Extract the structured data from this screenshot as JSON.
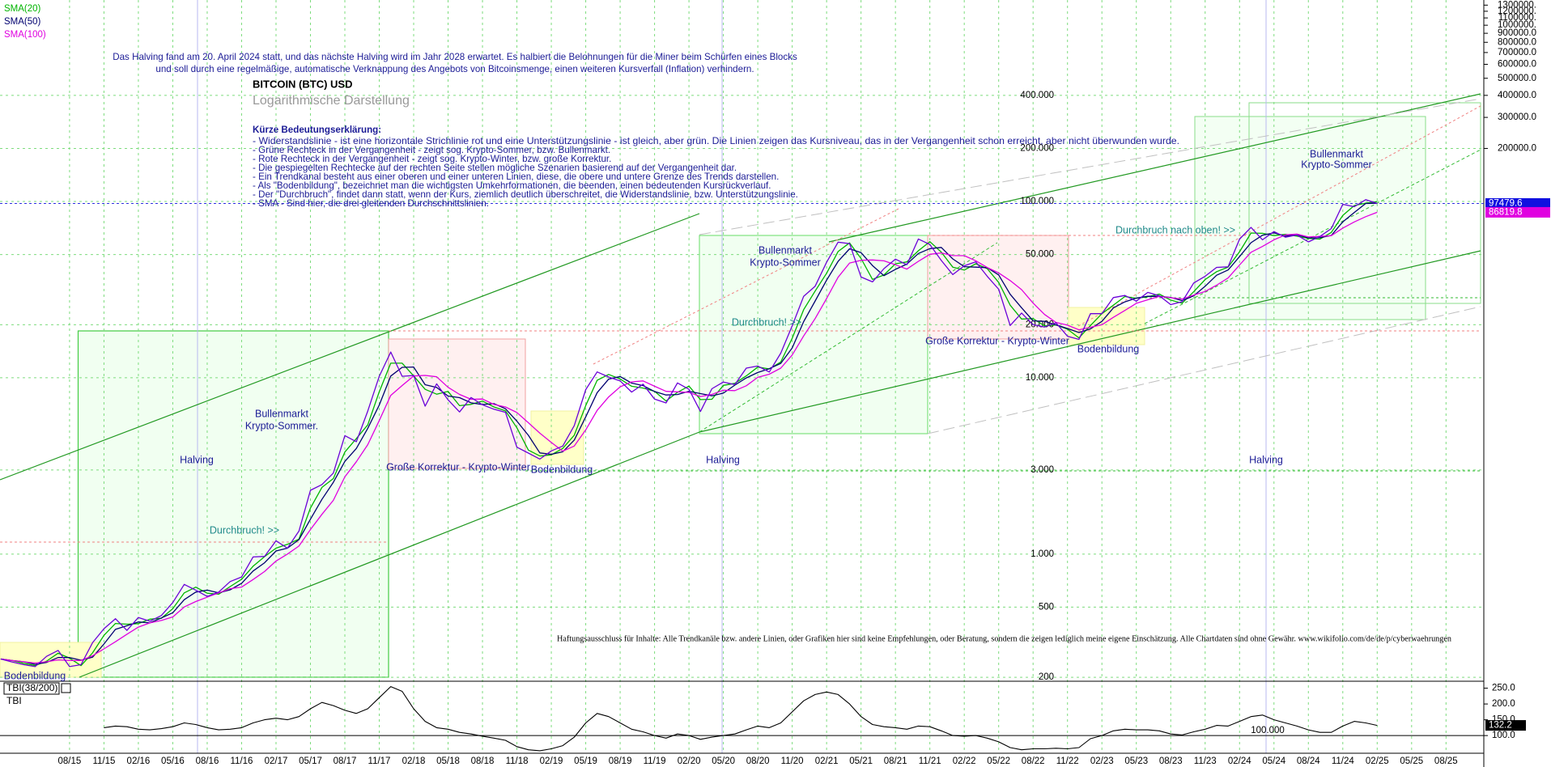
{
  "chart_data": [
    {
      "type": "line",
      "title": "BITCOIN (BTC) USD",
      "subtitle": "Logarithmische Darstellung",
      "categories": [
        null,
        null,
        null,
        null,
        null,
        null,
        "08/15",
        null,
        null,
        "11/15",
        null,
        null,
        "02/16",
        null,
        null,
        "05/16",
        null,
        null,
        "08/16",
        null,
        null,
        "11/16",
        null,
        null,
        "02/17",
        null,
        null,
        "05/17",
        null,
        null,
        "08/17",
        null,
        null,
        "11/17",
        null,
        null,
        "02/18",
        null,
        null,
        "05/18",
        null,
        null,
        "08/18",
        null,
        null,
        "11/18",
        null,
        null,
        "02/19",
        null,
        null,
        "05/19",
        null,
        null,
        "08/19",
        null,
        null,
        "11/19",
        null,
        null,
        "02/20",
        null,
        null,
        "05/20",
        null,
        null,
        "08/20",
        null,
        null,
        "11/20",
        null,
        null,
        "02/21",
        null,
        null,
        "05/21",
        null,
        null,
        "08/21",
        null,
        null,
        "11/21",
        null,
        null,
        "02/22",
        null,
        null,
        "05/22",
        null,
        null,
        "08/22",
        null,
        null,
        "11/22",
        null,
        null,
        "02/23",
        null,
        null,
        "05/23",
        null,
        null,
        "08/23",
        null,
        null,
        "11/23",
        null,
        null,
        "02/24",
        null,
        null,
        "05/24",
        null,
        null,
        "08/24",
        null,
        null,
        "11/24",
        null,
        null,
        "02/25",
        null,
        null,
        "05/25",
        null,
        null,
        "08/25"
      ],
      "values": [
        254,
        244,
        236,
        230,
        263,
        284,
        230,
        236,
        314,
        377,
        430,
        369,
        437,
        416,
        448,
        531,
        673,
        624,
        575,
        609,
        698,
        742,
        963,
        970,
        1190,
        1080,
        1350,
        2300,
        2480,
        2880,
        4700,
        4340,
        6470,
        10200,
        14000,
        10200,
        10300,
        6900,
        9240,
        7500,
        6400,
        7730,
        7030,
        6630,
        6370,
        4040,
        3740,
        3460,
        3850,
        4100,
        5350,
        8570,
        10800,
        10100,
        9600,
        8300,
        9200,
        7570,
        7200,
        9350,
        8600,
        6440,
        8660,
        9460,
        9140,
        11350,
        11660,
        10780,
        13800,
        19700,
        29000,
        33100,
        45200,
        58800,
        57700,
        37300,
        35000,
        41600,
        47100,
        43800,
        61300,
        57000,
        46300,
        38500,
        43200,
        45500,
        37700,
        31800,
        19800,
        23300,
        20000,
        19400,
        20500,
        17200,
        16500,
        23100,
        23100,
        28500,
        29300,
        27200,
        30500,
        29200,
        26000,
        27000,
        34500,
        37700,
        42300,
        42600,
        61200,
        71300,
        60600,
        67500,
        62700,
        64600,
        59000,
        63300,
        70200,
        96400,
        93400,
        102400,
        97479.6,
        null,
        null,
        null,
        null,
        null,
        null
      ],
      "color": "#6a00d8",
      "series": [
        {
          "name": "SMA(20)",
          "color": "#00b400",
          "values": [
            254,
            249,
            240,
            233,
            247,
            274,
            257,
            233,
            275,
            346,
            404,
            400,
            403,
            427,
            432,
            490,
            602,
            649,
            600,
            592,
            654,
            720,
            853,
            967,
            1080,
            1135,
            1215,
            1825,
            2390,
            2680,
            3790,
            4520,
            5405,
            8335,
            12100,
            12100,
            10250,
            8600,
            8070,
            8370,
            6950,
            7065,
            7380,
            6830,
            6500,
            5205,
            3890,
            3600,
            3655,
            3975,
            4725,
            6960,
            9685,
            10450,
            9850,
            8950,
            8750,
            8385,
            7385,
            8275,
            8975,
            7520,
            7550,
            9060,
            9300,
            10245,
            11505,
            11220,
            12290,
            16750,
            24350,
            31050,
            39150,
            52000,
            58250,
            47500,
            36150,
            38300,
            44350,
            45450,
            52550,
            59150,
            51650,
            42400,
            40850,
            44350,
            41600,
            34750,
            25800,
            21550,
            21650,
            19700,
            19950,
            18850,
            16850,
            19800,
            23100,
            25800,
            28900,
            28250,
            28850,
            29850,
            27600,
            26500,
            30750,
            36100,
            40000,
            42450,
            51900,
            66250,
            65950,
            64050,
            65100,
            63650,
            61800,
            61150,
            66750,
            83300,
            94900,
            97900,
            99940,
            null,
            null,
            null,
            null,
            null,
            null
          ]
        },
        {
          "name": "SMA(50)",
          "color": "#000070",
          "values": [
            254,
            249,
            245,
            237,
            243,
            259,
            259,
            250,
            260,
            309,
            374,
            392,
            412,
            407,
            434,
            465,
            551,
            609,
            624,
            603,
            627,
            683,
            801,
            892,
            1041,
            1080,
            1207,
            1577,
            2043,
            2553,
            3353,
            3973,
            5170,
            7003,
            10223,
            11467,
            11500,
            9133,
            8813,
            7880,
            7713,
            7210,
            7053,
            7130,
            6677,
            5680,
            4717,
            3747,
            3683,
            3803,
            4433,
            6007,
            8240,
            9823,
            10167,
            9333,
            9033,
            8357,
            7990,
            8040,
            8383,
            8130,
            7900,
            8187,
            9087,
            9983,
            10717,
            11263,
            12080,
            14760,
            20833,
            27267,
            35767,
            45700,
            53900,
            51267,
            43333,
            37967,
            41233,
            44167,
            50733,
            54033,
            54867,
            47267,
            42667,
            42400,
            42133,
            38333,
            29767,
            24967,
            21033,
            20900,
            19967,
            19033,
            18067,
            18933,
            20900,
            24900,
            26967,
            28333,
            29000,
            28967,
            28567,
            27400,
            29167,
            33067,
            38167,
            40867,
            48700,
            58367,
            64367,
            66467,
            63600,
            64933,
            62100,
            62300,
            64167,
            76633,
            86667,
            97400,
            97760,
            null,
            null,
            null,
            null,
            null,
            null
          ]
        },
        {
          "name": "SMA(100)",
          "color": "#e000e0",
          "values": [
            254,
            249,
            245,
            241,
            245,
            251,
            249,
            249,
            265,
            290,
            318,
            351,
            385,
            407,
            420,
            440,
            501,
            538,
            570,
            602,
            636,
            650,
            717,
            796,
            913,
            1000,
            1111,
            1378,
            1680,
            2018,
            2742,
            3340,
            4174,
            5718,
            7942,
            9042,
            10240,
            10320,
            10128,
            8828,
            8048,
            7554,
            7580,
            7058,
            6832,
            6360,
            5558,
            4848,
            4294,
            3838,
            4100,
            5066,
            6534,
            7784,
            8884,
            9474,
            9600,
            8954,
            8374,
            8324,
            8264,
            7832,
            8050,
            8502,
            8460,
            9010,
            10054,
            10478,
            11346,
            13458,
            17268,
            21676,
            28160,
            37160,
            44760,
            46420,
            46600,
            46080,
            43740,
            41360,
            45760,
            50160,
            51100,
            49340,
            49260,
            46100,
            42240,
            39340,
            35600,
            31620,
            26520,
            22860,
            20600,
            19880,
            18720,
            19340,
            19980,
            22040,
            24100,
            26440,
            27720,
            28940,
            28440,
            27980,
            29440,
            30880,
            33500,
            36820,
            43660,
            51540,
            55600,
            60640,
            64660,
            65340,
            62880,
            63420,
            63960,
            70700,
            76580,
            82000,
            86819.8,
            null,
            null,
            null,
            null,
            null,
            null
          ]
        }
      ],
      "log_scale": true,
      "grid": true,
      "ylim": [
        194,
        1390000
      ],
      "yticks": [
        {
          "value": 400000,
          "label": "400.000"
        },
        {
          "value": 200000,
          "label": "200.000"
        },
        {
          "value": 100000,
          "label": "100.000"
        },
        {
          "value": 50000,
          "label": "50.000"
        },
        {
          "value": 20000,
          "label": "20.000"
        },
        {
          "value": 10000,
          "label": "10.000"
        },
        {
          "value": 3000,
          "label": "3.000"
        },
        {
          "value": 1000,
          "label": "1.000"
        },
        500,
        200
      ],
      "yticks_right": [
        {
          "value": 1300000,
          "label": "1300000."
        },
        {
          "value": 1200000,
          "label": "1200000."
        },
        {
          "value": 1100000,
          "label": "1100000."
        },
        {
          "value": 1000000,
          "label": "1000000."
        },
        {
          "value": 900000,
          "label": "900000.0"
        },
        {
          "value": 800000,
          "label": "800000.0"
        },
        {
          "value": 700000,
          "label": "700000.0"
        },
        {
          "value": 600000,
          "label": "600000.0"
        },
        {
          "value": 500000,
          "label": "500000.0"
        },
        {
          "value": 400000,
          "label": "400000.0"
        },
        {
          "value": 300000,
          "label": "300000.0"
        },
        {
          "value": 200000,
          "label": "200000.0"
        }
      ],
      "intro": [
        "Das Halving fand am 20. April 2024 statt, und das nächste Halving wird im Jahr 2028 erwartet. Es halbiert die Belohnungen für die Miner beim Schürfen eines Blocks",
        "und soll durch eine regelmäßige, automatische Verknappung des Angebots von Bitcoinsmenge, einen weiteren Kursverfall (Inflation) verhindern."
      ],
      "legend_heading": "Kürze Bedeutungserklärung:",
      "legend_lines": [
        "- Widerstandslinie - ist eine horizontale Strichlinie rot und eine Unterstützungslinie - ist gleich, aber grün. Die Linien zeigen das Kursniveau, das in der Vergangenheit schon erreicht, aber nicht überwunden wurde.",
        "- Grüne Rechteck in der Vergangenheit - zeigt sog. Krypto-Sommer, bzw. Bullenmarkt.",
        "- Rote Rechteck in der Vergangenheit - zeigt sog. Krypto-Winter, bzw. große Korrektur.",
        "- Die gespiegelten Rechtecke auf der rechten Seite stellen mögliche Szenarien basierend auf der Vergangenheit dar.",
        "- Ein Trendkanal besteht aus einer oberen und einer unteren Linien, diese, die obere und untere Grenze des Trends darstellen.",
        "- Als \"Bodenbildung\", bezeichnet man die wichtigsten Umkehrformationen, die beenden, einen bedeutenden Kursrückverlauf.",
        "- Der \"Durchbruch\", findet dann statt, wenn der Kurs, ziemlich deutlich überschreitet, die Widerstandslinie, bzw. Unterstützungslinie.",
        "- SMA - Sind hier, die drei gleitenden Durchschnittslinien."
      ],
      "annotations": [
        "Bullenmarkt",
        "Krypto-Sommer.",
        "Halving",
        "Durchbruch! >>",
        "Große Korrektur - Krypto-Winter",
        "Bodenbildung",
        "Halving",
        "Bullenmarkt",
        "Krypto-Sommer",
        "Durchbruch! >>",
        "Große Korrektur - Krypto-Winter",
        "Bodenbildung",
        "Durchbruch nach oben! >>",
        "Bullenmarkt",
        "Krypto-Sommer",
        "Halving",
        "Bodenbildung"
      ],
      "disclaimer": "Haftungsausschluss für Inhalte: Alle Trendkanäle bzw. andere Linien, oder Grafiken hier sind keine Empfehlungen, oder Beratung, sondern die zeigen lediglich meine eigene Einschätzung. Alle Chartdaten sind ohne Gewähr.  www.wikifolio.com/de/de/p/cyberwaehrungen"
    },
    {
      "type": "line",
      "title": "TBI(38/200)",
      "label": "TBI",
      "color": "#000000",
      "values": [
        null,
        null,
        null,
        null,
        null,
        null,
        null,
        null,
        null,
        125,
        130,
        128,
        120,
        118,
        122,
        128,
        140,
        135,
        125,
        118,
        120,
        125,
        140,
        150,
        155,
        150,
        160,
        185,
        205,
        195,
        180,
        170,
        185,
        220,
        255,
        240,
        185,
        145,
        125,
        120,
        110,
        105,
        98,
        92,
        85,
        65,
        55,
        52,
        58,
        68,
        95,
        140,
        170,
        160,
        140,
        120,
        112,
        100,
        92,
        105,
        100,
        88,
        95,
        100,
        105,
        118,
        130,
        125,
        140,
        175,
        210,
        230,
        238,
        230,
        200,
        160,
        135,
        128,
        125,
        120,
        130,
        128,
        115,
        100,
        98,
        100,
        92,
        80,
        62,
        55,
        58,
        58,
        60,
        58,
        62,
        90,
        100,
        115,
        120,
        118,
        118,
        115,
        105,
        102,
        112,
        120,
        132,
        130,
        145,
        160,
        165,
        150,
        140,
        130,
        118,
        110,
        110,
        130,
        145,
        140,
        132.2,
        null,
        null,
        null,
        null,
        null,
        null
      ],
      "ylim": [
        44,
        272
      ],
      "yticks": [
        {
          "value": 250,
          "label": "250.0"
        },
        {
          "value": 200,
          "label": "200.0"
        },
        {
          "value": 150,
          "label": "150.0"
        },
        {
          "value": 100,
          "label": "100.0"
        }
      ],
      "reference_line": {
        "value": 100,
        "label": "100.000"
      }
    }
  ]
}
